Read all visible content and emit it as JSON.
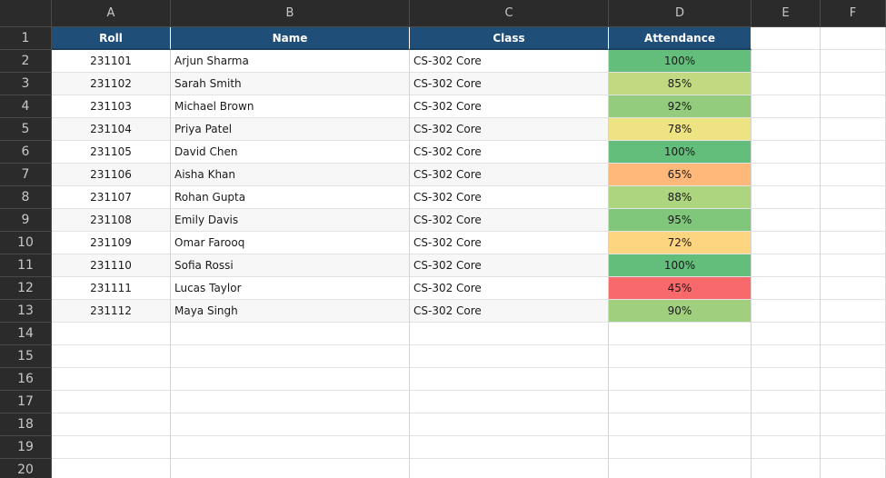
{
  "columns": [
    "A",
    "B",
    "C",
    "D",
    "E",
    "F"
  ],
  "row_numbers": [
    "1",
    "2",
    "3",
    "4",
    "5",
    "6",
    "7",
    "8",
    "9",
    "10",
    "11",
    "12",
    "13",
    "14",
    "15",
    "16",
    "17",
    "18",
    "19",
    "20"
  ],
  "headers": {
    "roll": "Roll",
    "name": "Name",
    "class": "Class",
    "attendance": "Attendance"
  },
  "students": [
    {
      "roll": "231101",
      "name": "Arjun Sharma",
      "class": "CS-302 Core",
      "attendance": "100%",
      "color": "#63be7b"
    },
    {
      "roll": "231102",
      "name": "Sarah Smith",
      "class": "CS-302 Core",
      "attendance": "85%",
      "color": "#c1da81"
    },
    {
      "roll": "231103",
      "name": "Michael Brown",
      "class": "CS-302 Core",
      "attendance": "92%",
      "color": "#93cc7d"
    },
    {
      "roll": "231104",
      "name": "Priya Patel",
      "class": "CS-302 Core",
      "attendance": "78%",
      "color": "#eee383"
    },
    {
      "roll": "231105",
      "name": "David Chen",
      "class": "CS-302 Core",
      "attendance": "100%",
      "color": "#63be7b"
    },
    {
      "roll": "231106",
      "name": "Aisha Khan",
      "class": "CS-302 Core",
      "attendance": "65%",
      "color": "#fdb87a"
    },
    {
      "roll": "231107",
      "name": "Rohan Gupta",
      "class": "CS-302 Core",
      "attendance": "88%",
      "color": "#add47f"
    },
    {
      "roll": "231108",
      "name": "Emily Davis",
      "class": "CS-302 Core",
      "attendance": "95%",
      "color": "#80c77c"
    },
    {
      "roll": "231109",
      "name": "Omar Farooq",
      "class": "CS-302 Core",
      "attendance": "72%",
      "color": "#fdd580"
    },
    {
      "roll": "231110",
      "name": "Sofia Rossi",
      "class": "CS-302 Core",
      "attendance": "100%",
      "color": "#63be7b"
    },
    {
      "roll": "231111",
      "name": "Lucas Taylor",
      "class": "CS-302 Core",
      "attendance": "45%",
      "color": "#f8696b"
    },
    {
      "roll": "231112",
      "name": "Maya Singh",
      "class": "CS-302 Core",
      "attendance": "90%",
      "color": "#a0d07e"
    }
  ],
  "colors": {
    "header_fill": "#1f4e79",
    "chrome": "#2b2b2b",
    "chrome_text": "#c8c8c8"
  }
}
